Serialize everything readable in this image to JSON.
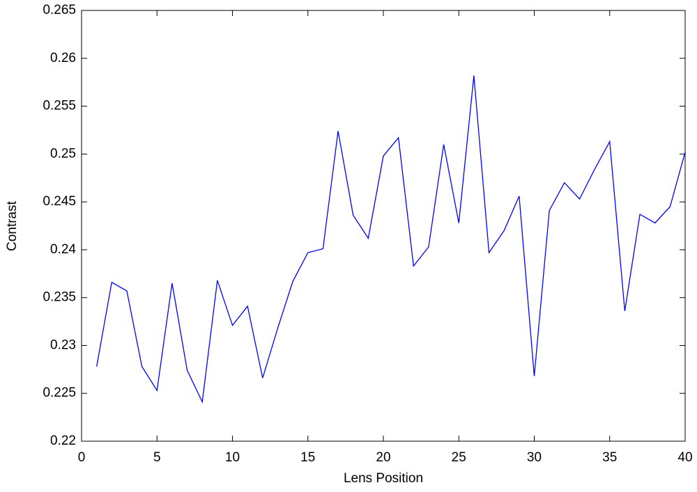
{
  "chart_data": {
    "type": "line",
    "x_label": "Lens Position",
    "y_label": "Contrast",
    "x": [
      1,
      2,
      3,
      4,
      5,
      6,
      7,
      8,
      9,
      10,
      11,
      12,
      13,
      14,
      15,
      16,
      17,
      18,
      19,
      20,
      21,
      22,
      23,
      24,
      25,
      26,
      27,
      28,
      29,
      30,
      31,
      32,
      33,
      34,
      35,
      36,
      37,
      38,
      39,
      40
    ],
    "series": [
      {
        "color": "#0000ff",
        "values": [
          0.2278,
          0.2366,
          0.2357,
          0.2278,
          0.2253,
          0.2365,
          0.2274,
          0.2241,
          0.2368,
          0.2321,
          0.2341,
          0.2266,
          0.2318,
          0.2367,
          0.2397,
          0.2401,
          0.2524,
          0.2436,
          0.2412,
          0.2498,
          0.2517,
          0.2383,
          0.2403,
          0.251,
          0.2428,
          0.2582,
          0.2397,
          0.242,
          0.2456,
          0.2268,
          0.2441,
          0.247,
          0.2453,
          0.2484,
          0.2513,
          0.2336,
          0.2437,
          0.2428,
          0.2445,
          0.2502
        ]
      }
    ],
    "xlim": [
      0,
      40
    ],
    "xticks": [
      0,
      5,
      10,
      15,
      20,
      25,
      30,
      35,
      40
    ],
    "ylim": [
      0.22,
      0.265
    ],
    "yticks": [
      0.22,
      0.225,
      0.23,
      0.235,
      0.24,
      0.245,
      0.25,
      0.255,
      0.26,
      0.265
    ],
    "grid": false
  }
}
